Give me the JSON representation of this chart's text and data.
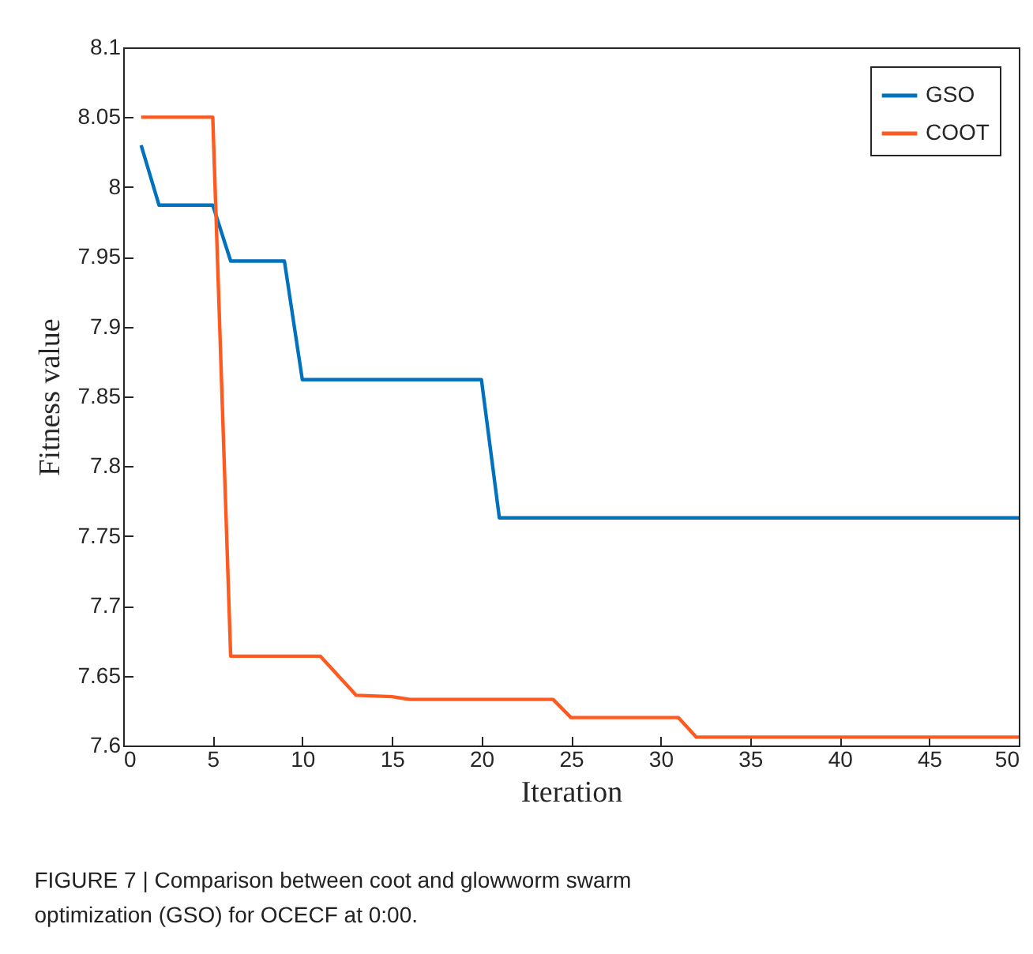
{
  "chart_data": {
    "type": "line",
    "xlabel": "Iteration",
    "ylabel": "Fitness value",
    "annotations": [
      "FIGURE 7 | Comparison between coot and glowworm swarm optimization (GSO) for OCECF at 0:00."
    ],
    "x": [
      1,
      2,
      5,
      6,
      9,
      10,
      11,
      13,
      15,
      16,
      20,
      21,
      24,
      25,
      31,
      32,
      50
    ],
    "series": [
      {
        "name": "GSO",
        "color": "#0072bd",
        "values": [
          8.03,
          7.987,
          7.987,
          7.947,
          7.947,
          7.862,
          7.862,
          7.862,
          7.862,
          7.862,
          7.862,
          7.763,
          7.763,
          7.763,
          7.763,
          7.763,
          7.763
        ]
      },
      {
        "name": "COOT",
        "color": "#ff5a1f",
        "values": [
          8.05,
          8.05,
          8.05,
          7.664,
          7.664,
          7.664,
          7.664,
          7.636,
          7.635,
          7.633,
          7.633,
          7.633,
          7.633,
          7.62,
          7.62,
          7.606,
          7.606
        ]
      }
    ],
    "xlim": [
      0,
      50
    ],
    "xticks": [
      0,
      5,
      10,
      15,
      20,
      25,
      30,
      35,
      40,
      45,
      50
    ],
    "ylim": [
      7.6,
      8.1
    ],
    "yticks": [
      7.6,
      7.65,
      7.7,
      7.75,
      7.8,
      7.85,
      7.9,
      7.95,
      8,
      8.05,
      8.1
    ],
    "grid": false,
    "legend": "top right",
    "marker": "none",
    "line_style": "solid"
  }
}
